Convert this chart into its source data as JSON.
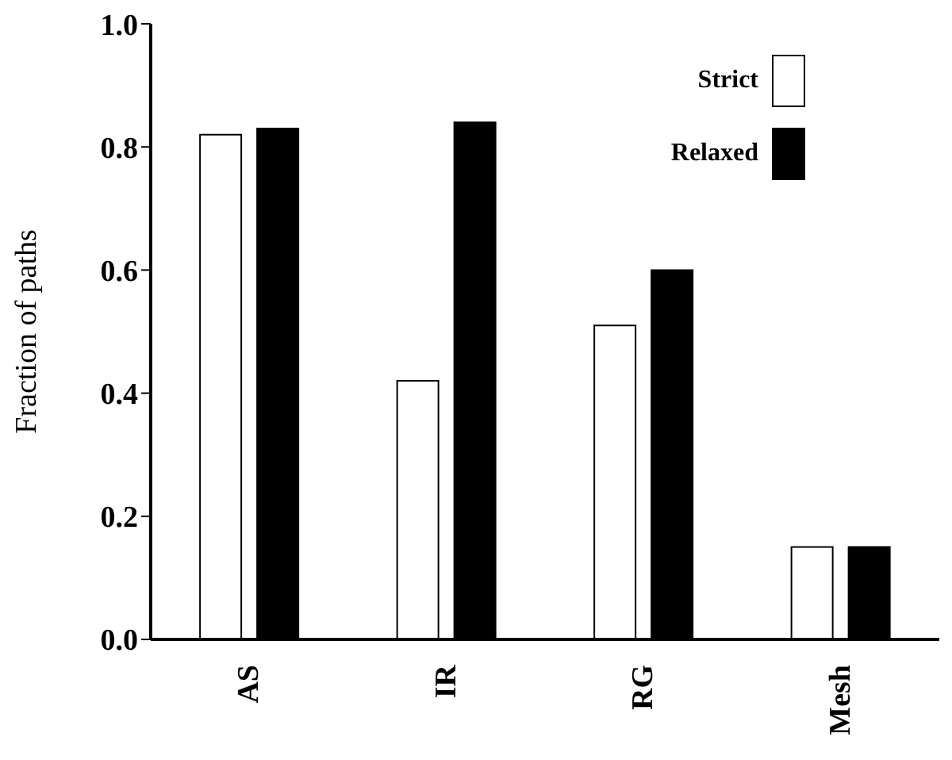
{
  "chart_data": {
    "type": "bar",
    "ylabel": "Fraction of paths",
    "categories": [
      "AS",
      "IR",
      "RG",
      "Mesh"
    ],
    "series": [
      {
        "name": "Strict",
        "color": "#ffffff",
        "values": [
          0.82,
          0.42,
          0.51,
          0.15
        ]
      },
      {
        "name": "Relaxed",
        "color": "#000000",
        "values": [
          0.83,
          0.84,
          0.6,
          0.15
        ]
      }
    ],
    "ylim": [
      0,
      1
    ],
    "yticks": [
      {
        "value": 0,
        "label": "0.0"
      },
      {
        "value": 0.2,
        "label": "0.2"
      },
      {
        "value": 0.4,
        "label": "0.4"
      },
      {
        "value": 0.6,
        "label": "0.6"
      },
      {
        "value": 0.8,
        "label": "0.8"
      },
      {
        "value": 1,
        "label": "1.0"
      }
    ],
    "grid": false,
    "legend": "top right"
  }
}
